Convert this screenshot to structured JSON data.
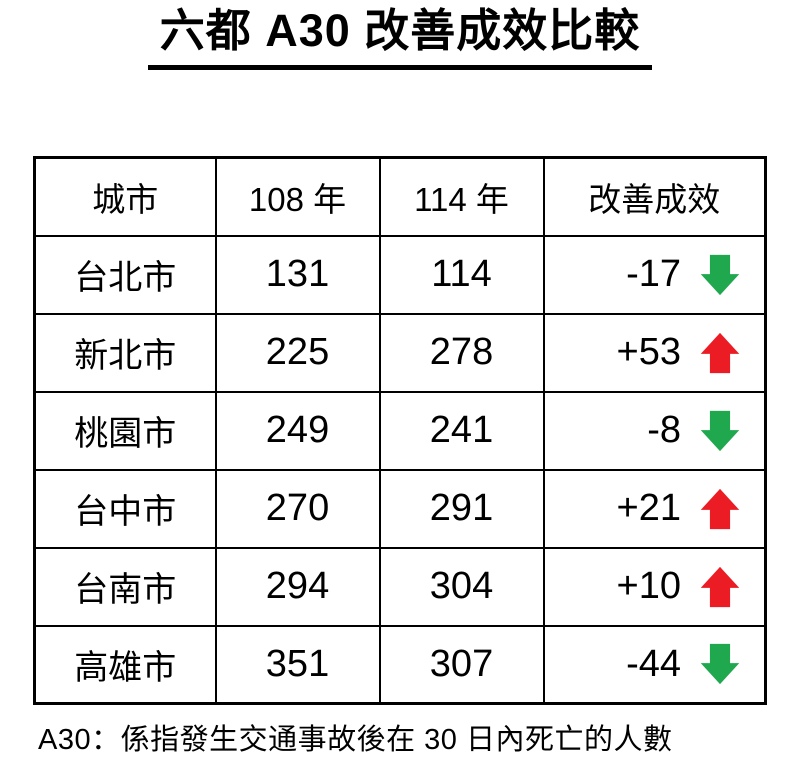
{
  "title": "六都 A30 改善成效比較",
  "table": {
    "headers": [
      "城市",
      "108 年",
      "114 年",
      "改善成效"
    ],
    "rows": [
      {
        "city": "台北市",
        "y108": "131",
        "y114": "114",
        "change": "-17",
        "direction": "down"
      },
      {
        "city": "新北市",
        "y108": "225",
        "y114": "278",
        "change": "+53",
        "direction": "up"
      },
      {
        "city": "桃園市",
        "y108": "249",
        "y114": "241",
        "change": "-8",
        "direction": "down"
      },
      {
        "city": "台中市",
        "y108": "270",
        "y114": "291",
        "change": "+21",
        "direction": "up"
      },
      {
        "city": "台南市",
        "y108": "294",
        "y114": "304",
        "change": "+10",
        "direction": "up"
      },
      {
        "city": "高雄市",
        "y108": "351",
        "y114": "307",
        "change": "-44",
        "direction": "down"
      }
    ]
  },
  "footnote": "A30：係指發生交通事故後在 30 日內死亡的人數",
  "colors": {
    "arrow_up": "#ec1c24",
    "arrow_down": "#1fa84e",
    "border": "#000000",
    "background": "#ffffff"
  },
  "chart_data": {
    "type": "table",
    "title": "六都 A30 改善成效比較",
    "columns": [
      "城市",
      "108 年",
      "114 年",
      "改善成效"
    ],
    "categories": [
      "台北市",
      "新北市",
      "桃園市",
      "台中市",
      "台南市",
      "高雄市"
    ],
    "series": [
      {
        "name": "108 年",
        "values": [
          131,
          225,
          249,
          270,
          294,
          351
        ]
      },
      {
        "name": "114 年",
        "values": [
          114,
          278,
          241,
          291,
          304,
          307
        ]
      },
      {
        "name": "改善成效",
        "values": [
          -17,
          53,
          -8,
          21,
          10,
          -44
        ]
      }
    ],
    "annotations": [
      "A30：係指發生交通事故後在 30 日內死亡的人數"
    ],
    "legend_position": "none"
  }
}
